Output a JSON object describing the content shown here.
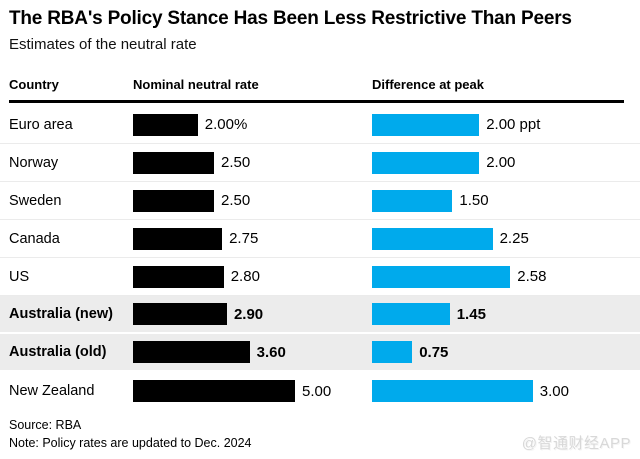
{
  "title": "The RBA's Policy Stance Has Been Less Restrictive Than Peers",
  "subtitle": "Estimates of the neutral rate",
  "columns": {
    "country": "Country",
    "nominal": "Nominal neutral rate",
    "difference": "Difference at peak"
  },
  "rows": [
    {
      "country": "Euro area",
      "nominal": 2.0,
      "nominal_label": "2.00%",
      "difference": 2.0,
      "difference_label": "2.00 ppt",
      "highlight": false
    },
    {
      "country": "Norway",
      "nominal": 2.5,
      "nominal_label": "2.50",
      "difference": 2.0,
      "difference_label": "2.00",
      "highlight": false
    },
    {
      "country": "Sweden",
      "nominal": 2.5,
      "nominal_label": "2.50",
      "difference": 1.5,
      "difference_label": "1.50",
      "highlight": false
    },
    {
      "country": "Canada",
      "nominal": 2.75,
      "nominal_label": "2.75",
      "difference": 2.25,
      "difference_label": "2.25",
      "highlight": false
    },
    {
      "country": "US",
      "nominal": 2.8,
      "nominal_label": "2.80",
      "difference": 2.58,
      "difference_label": "2.58",
      "highlight": false
    },
    {
      "country": "Australia (new)",
      "nominal": 2.9,
      "nominal_label": "2.90",
      "difference": 1.45,
      "difference_label": "1.45",
      "highlight": true
    },
    {
      "country": "Australia (old)",
      "nominal": 3.6,
      "nominal_label": "3.60",
      "difference": 0.75,
      "difference_label": "0.75",
      "highlight": true
    },
    {
      "country": "New Zealand",
      "nominal": 5.0,
      "nominal_label": "5.00",
      "difference": 3.0,
      "difference_label": "3.00",
      "highlight": false
    }
  ],
  "footer": {
    "source": "Source: RBA",
    "note": "Note: Policy rates are updated to Dec. 2024"
  },
  "watermark": "@智通财经APP",
  "colors": {
    "bar_black": "#000000",
    "bar_blue": "#00aaec",
    "highlight_row_bg": "#ececec"
  },
  "chart_data": {
    "type": "bar",
    "orientation": "horizontal",
    "title": "The RBA's Policy Stance Has Been Less Restrictive Than Peers",
    "subtitle": "Estimates of the neutral rate",
    "categories": [
      "Euro area",
      "Norway",
      "Sweden",
      "Canada",
      "US",
      "Australia (new)",
      "Australia (old)",
      "New Zealand"
    ],
    "series": [
      {
        "name": "Nominal neutral rate",
        "unit": "%",
        "color": "#000000",
        "values": [
          2.0,
          2.5,
          2.5,
          2.75,
          2.8,
          2.9,
          3.6,
          5.0
        ]
      },
      {
        "name": "Difference at peak",
        "unit": "ppt",
        "color": "#00aaec",
        "values": [
          2.0,
          2.0,
          1.5,
          2.25,
          2.58,
          1.45,
          0.75,
          3.0
        ]
      }
    ],
    "highlighted_categories": [
      "Australia (new)",
      "Australia (old)"
    ],
    "grid": false,
    "legend_position": "column-headers",
    "source": "Source: RBA",
    "note": "Note: Policy rates are updated to Dec. 2024"
  }
}
